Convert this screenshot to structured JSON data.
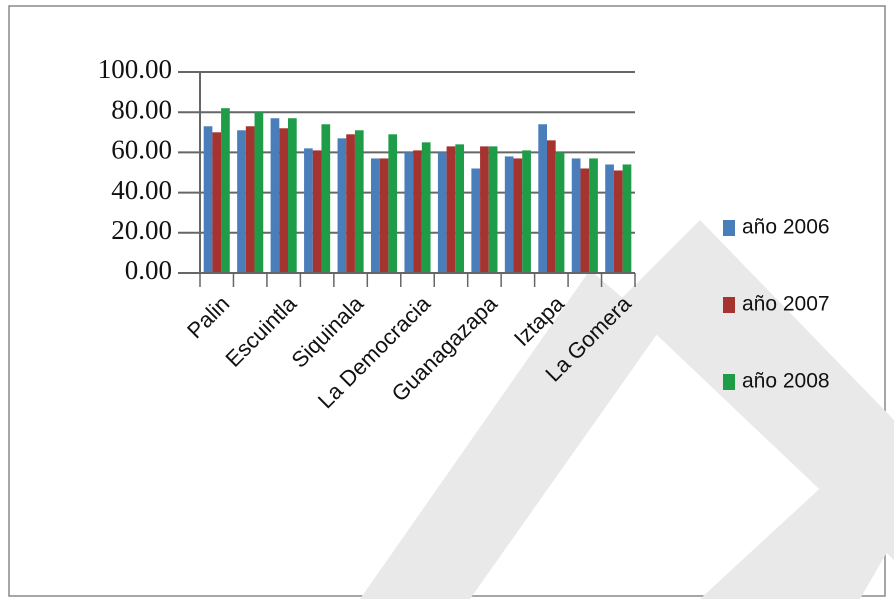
{
  "chart_data": {
    "type": "bar",
    "categories": [
      "Palin",
      null,
      "Escuintla",
      null,
      "Siquinala",
      null,
      "La Democracia",
      null,
      "Guanagazapa",
      null,
      "Iztapa",
      null,
      "La Gomera"
    ],
    "series": [
      {
        "name": "año 2006",
        "color": "#4a7ebb",
        "values": [
          73,
          71,
          77,
          62,
          67,
          57,
          60,
          60,
          52,
          58,
          74,
          57,
          54
        ]
      },
      {
        "name": "año 2007",
        "color": "#a5332f",
        "values": [
          70,
          73,
          72,
          61,
          69,
          57,
          61,
          63,
          63,
          57,
          66,
          52,
          51
        ]
      },
      {
        "name": "año 2008",
        "color": "#1e9c48",
        "values": [
          82,
          80,
          77,
          74,
          71,
          69,
          65,
          64,
          63,
          61,
          60,
          57,
          54
        ]
      }
    ],
    "ylim": [
      0,
      100
    ],
    "yticks": [
      {
        "value": 0,
        "label": "0.00"
      },
      {
        "value": 20,
        "label": "20.00"
      },
      {
        "value": 40,
        "label": "40.00"
      },
      {
        "value": 60,
        "label": "60.00"
      },
      {
        "value": 80,
        "label": "80.00"
      },
      {
        "value": 100,
        "label": "100.00"
      }
    ],
    "grid": true,
    "legend": "right"
  }
}
